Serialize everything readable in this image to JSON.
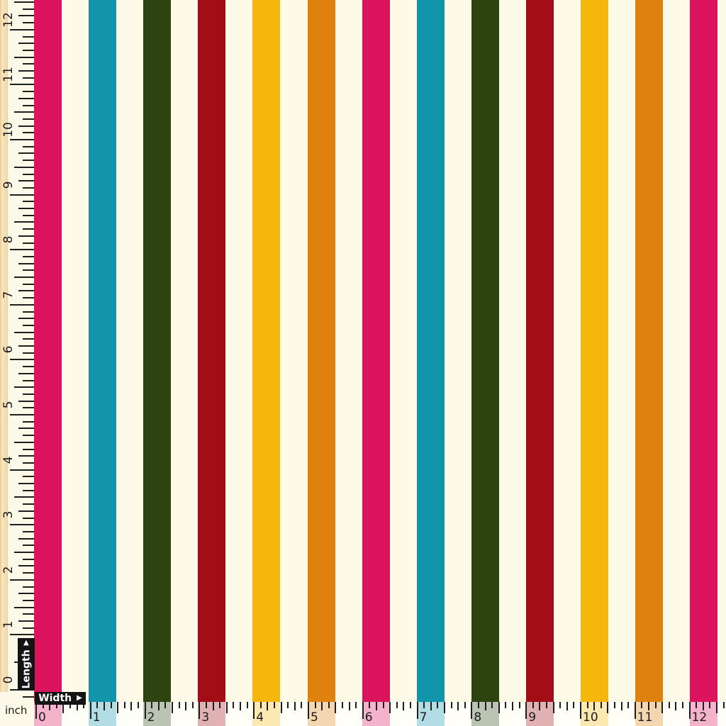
{
  "labels": {
    "length": "Length",
    "width": "Width",
    "unit": "inch",
    "arrow_glyph": "▶"
  },
  "left_ruler": {
    "numbers": [
      "0",
      "1",
      "2",
      "3",
      "4",
      "5",
      "6",
      "7",
      "8",
      "9",
      "10",
      "11",
      "12"
    ]
  },
  "bottom_ruler": {
    "numbers": [
      "0",
      "1",
      "2",
      "3",
      "4",
      "5",
      "6",
      "7",
      "8",
      "9",
      "10",
      "11",
      "12"
    ]
  },
  "stripes": {
    "sequence": [
      "pink",
      "teal",
      "dark-green",
      "dark-red",
      "yellow",
      "orange"
    ],
    "count": 13
  },
  "colors": {
    "pink": "#dc145e",
    "teal": "#1295ab",
    "dark-green": "#2e4410",
    "dark-red": "#a30d15",
    "yellow": "#f6b70d",
    "orange": "#de820d",
    "cream": "#fdfbe7",
    "tan_edge": "#f2d8a8",
    "tick": "#1e1e1e",
    "tag_background": "#141414",
    "tag_text": "#ffffff"
  }
}
